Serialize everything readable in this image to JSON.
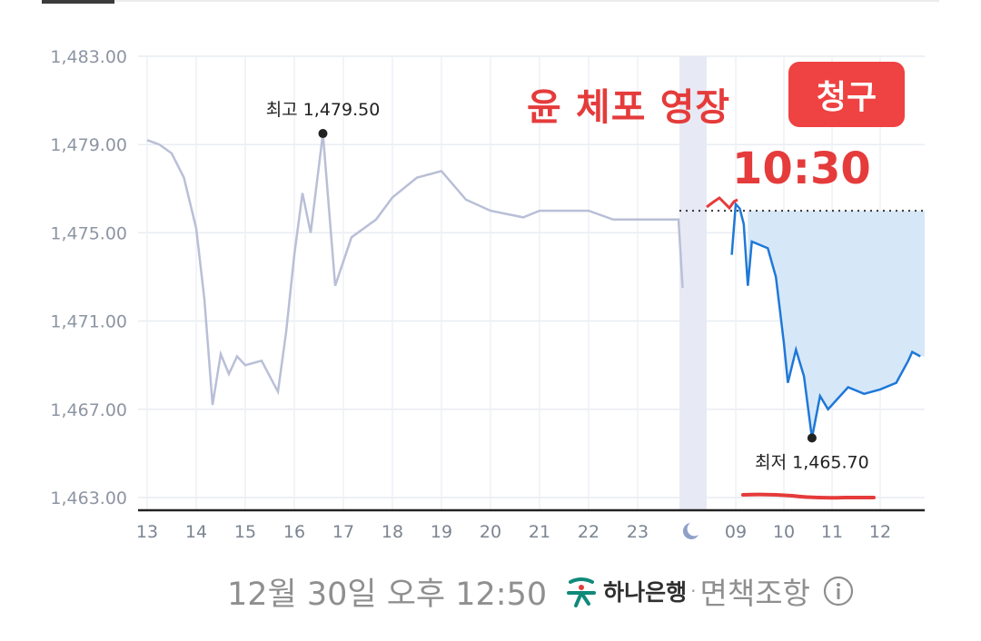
{
  "chart_data": {
    "type": "line",
    "yticks": [
      "1,483.00",
      "1,479.00",
      "1,475.00",
      "1,471.00",
      "1,467.00",
      "1,463.00"
    ],
    "ytick_values": [
      1483,
      1479,
      1475,
      1471,
      1467,
      1463
    ],
    "ylim": [
      1463,
      1483
    ],
    "xticks": [
      "13",
      "14",
      "15",
      "16",
      "17",
      "18",
      "19",
      "20",
      "21",
      "22",
      "23",
      "09",
      "10",
      "11",
      "12"
    ],
    "night_marker": "moon-icon",
    "grid": true,
    "previous_close": 1476.0,
    "series": [
      {
        "session": "previous-day",
        "color": "#b9bfd6",
        "points": [
          [
            "13:00",
            1479.2
          ],
          [
            "13:15",
            1479.0
          ],
          [
            "13:30",
            1478.6
          ],
          [
            "13:45",
            1477.5
          ],
          [
            "14:00",
            1475.2
          ],
          [
            "14:10",
            1472.0
          ],
          [
            "14:20",
            1467.2
          ],
          [
            "14:30",
            1469.5
          ],
          [
            "14:40",
            1468.6
          ],
          [
            "14:50",
            1469.4
          ],
          [
            "15:00",
            1469.0
          ],
          [
            "15:20",
            1469.2
          ],
          [
            "15:40",
            1467.8
          ],
          [
            "15:50",
            1470.5
          ],
          [
            "16:00",
            1474.0
          ],
          [
            "16:10",
            1476.8
          ],
          [
            "16:20",
            1475.0
          ],
          [
            "16:35",
            1479.5
          ],
          [
            "16:50",
            1472.6
          ],
          [
            "17:10",
            1474.8
          ],
          [
            "17:40",
            1475.6
          ],
          [
            "18:00",
            1476.6
          ],
          [
            "18:30",
            1477.5
          ],
          [
            "19:00",
            1477.8
          ],
          [
            "19:30",
            1476.5
          ],
          [
            "20:00",
            1476.0
          ],
          [
            "20:40",
            1475.7
          ],
          [
            "21:00",
            1476.0
          ],
          [
            "22:00",
            1476.0
          ],
          [
            "22:30",
            1475.6
          ],
          [
            "23:50",
            1475.6
          ],
          [
            "23:55",
            1472.5
          ]
        ]
      },
      {
        "session": "today",
        "color": "#1f78d8",
        "points": [
          [
            "08:55",
            1474.0
          ],
          [
            "09:00",
            1476.3
          ],
          [
            "09:05",
            1476.1
          ],
          [
            "09:10",
            1475.4
          ],
          [
            "09:15",
            1472.6
          ],
          [
            "09:20",
            1474.6
          ],
          [
            "09:40",
            1474.3
          ],
          [
            "09:50",
            1473.0
          ],
          [
            "10:00",
            1470.0
          ],
          [
            "10:05",
            1468.2
          ],
          [
            "10:15",
            1469.7
          ],
          [
            "10:25",
            1468.5
          ],
          [
            "10:35",
            1465.7
          ],
          [
            "10:45",
            1467.6
          ],
          [
            "10:55",
            1467.0
          ],
          [
            "11:05",
            1467.4
          ],
          [
            "11:20",
            1468.0
          ],
          [
            "11:40",
            1467.7
          ],
          [
            "12:00",
            1467.9
          ],
          [
            "12:20",
            1468.2
          ],
          [
            "12:35",
            1469.2
          ],
          [
            "12:40",
            1469.6
          ],
          [
            "12:50",
            1469.4
          ]
        ]
      }
    ],
    "annotations": {
      "high_label": "최고 1,479.50",
      "high_value": 1479.5,
      "high_time": "16:35",
      "low_label": "최저 1,465.70",
      "low_value": 1465.7,
      "low_time": "10:35"
    }
  },
  "overlay": {
    "headline": "윤 체포 영장",
    "badge": "청구",
    "time": "10:30",
    "color": "#e53b3b"
  },
  "footer": {
    "timestamp": "12월 30일 오후 12:50",
    "brand": "하나은행",
    "separator": "·",
    "disclaimer": "면책조항",
    "info_icon": "info-icon",
    "brand_icon": "hana-bank-logo-icon"
  }
}
